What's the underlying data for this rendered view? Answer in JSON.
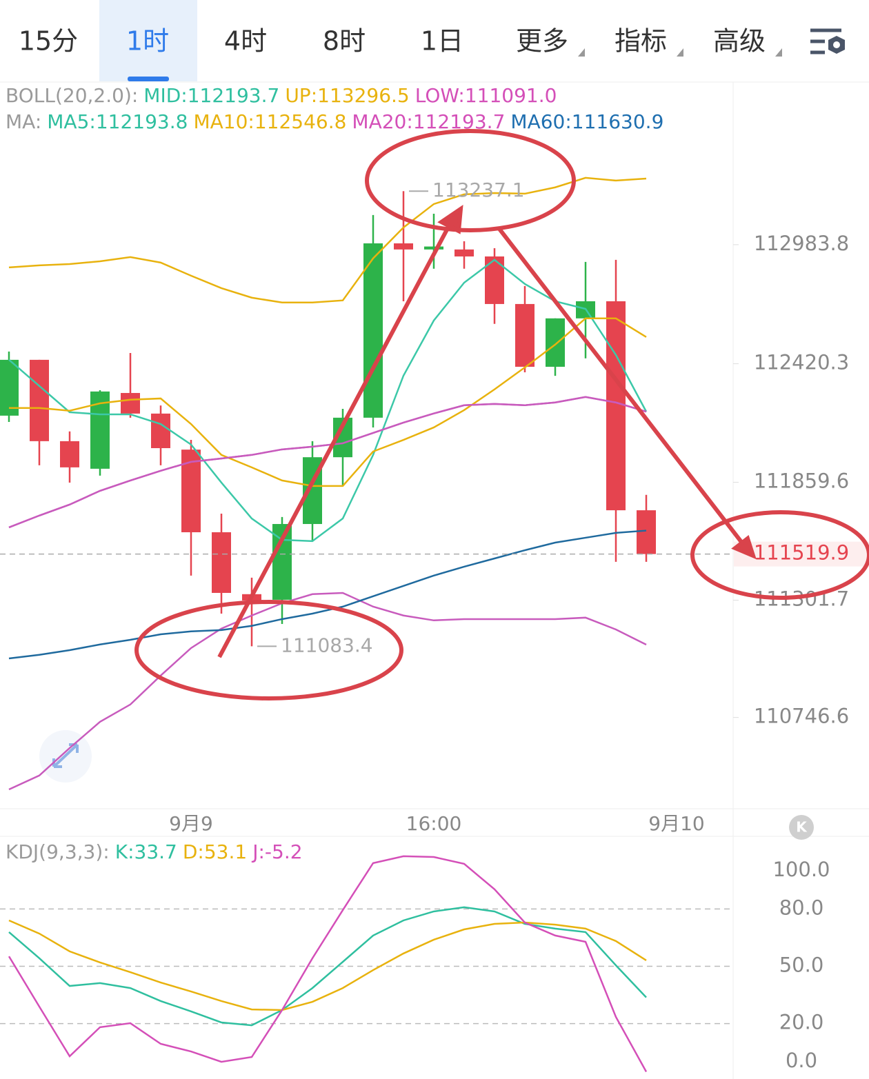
{
  "tabs": {
    "items": [
      "15分",
      "1时",
      "4时",
      "8时",
      "1日",
      "更多",
      "指标",
      "高级"
    ],
    "active": 1
  },
  "chart_data": [
    {
      "type": "candlestick",
      "indicator_title": "BOLL(20,2.0):",
      "ma_title": "MA:",
      "ylim": [
        110318,
        113750
      ],
      "yticks": [
        {
          "value": 112983.8,
          "label": "112983.8"
        },
        {
          "value": 112420.3,
          "label": "112420.3"
        },
        {
          "value": 111859.6,
          "label": "111859.6"
        },
        {
          "value": 111301.7,
          "label": "111301.7"
        },
        {
          "value": 110746.6,
          "label": "110746.6"
        }
      ],
      "xticks": [
        {
          "value": 6,
          "label": "9月9"
        },
        {
          "value": 14,
          "label": "16:00"
        },
        {
          "value": 22,
          "label": "9月10"
        }
      ],
      "up_color": "#2db34a",
      "down_color": "#e5444f",
      "candles": [
        {
          "open": 112174.7,
          "high": 112478,
          "low": 112145,
          "close": 112438.9
        },
        {
          "open": 112438.9,
          "high": 112438.9,
          "low": 111939.8,
          "close": 112054
        },
        {
          "open": 112054,
          "high": 112100,
          "low": 111858,
          "close": 111930
        },
        {
          "open": 111923.5,
          "high": 112295,
          "low": 111891,
          "close": 112289
        },
        {
          "open": 112282,
          "high": 112471,
          "low": 112165,
          "close": 112184.5
        },
        {
          "open": 112184.5,
          "high": 112223,
          "low": 111940,
          "close": 112021
        },
        {
          "open": 112014,
          "high": 112060,
          "low": 111418,
          "close": 111623
        },
        {
          "open": 111623,
          "high": 111711,
          "low": 111238,
          "close": 111336
        },
        {
          "open": 111330,
          "high": 111408,
          "low": 111083.4,
          "close": 111300
        },
        {
          "open": 111303.6,
          "high": 111695,
          "low": 111189,
          "close": 111662
        },
        {
          "open": 111662,
          "high": 112054,
          "low": 111581,
          "close": 111978
        },
        {
          "open": 111978,
          "high": 112207,
          "low": 111842,
          "close": 112165
        },
        {
          "open": 112165,
          "high": 113124,
          "low": 112119,
          "close": 112990
        },
        {
          "open": 112990,
          "high": 113237.1,
          "low": 112716,
          "close": 112961
        },
        {
          "open": 112961,
          "high": 113130,
          "low": 112870,
          "close": 112975
        },
        {
          "open": 112961,
          "high": 113000,
          "low": 112870,
          "close": 112928
        },
        {
          "open": 112928,
          "high": 112967,
          "low": 112609,
          "close": 112703
        },
        {
          "open": 112703,
          "high": 112788,
          "low": 112380,
          "close": 112406
        },
        {
          "open": 112406,
          "high": 112635,
          "low": 112363,
          "close": 112635
        },
        {
          "open": 112635,
          "high": 112902,
          "low": 112446,
          "close": 112716
        },
        {
          "open": 112716,
          "high": 112912,
          "low": 111483,
          "close": 111727
        },
        {
          "open": 111727,
          "high": 111800,
          "low": 111483,
          "close": 111519.9
        }
      ],
      "series": [
        {
          "label": "MID:112193.7",
          "group": "boll",
          "color": "#2fbf9f",
          "line": "#c85bbd",
          "values": [
            111646,
            111702,
            111754,
            111819,
            111868,
            111914,
            111956,
            111972,
            111989,
            112015,
            112028,
            112044,
            112093,
            112142,
            112185,
            112224,
            112230,
            112224,
            112237,
            112263,
            112237,
            112193.7
          ]
        },
        {
          "label": "UP:113296.5",
          "group": "boll",
          "color": "#e8b20e",
          "line": "#e8b20e",
          "values": [
            112876,
            112886,
            112892,
            112905,
            112925,
            112899,
            112837,
            112778,
            112733,
            112710,
            112710,
            112720,
            112919,
            113065,
            113176,
            113222,
            113228,
            113225,
            113255,
            113300,
            113287,
            113296.5
          ]
        },
        {
          "label": "LOW:111091.0",
          "group": "boll",
          "color": "#d44fb8",
          "line": "#c85bbd",
          "values": [
            110406,
            110472,
            110602,
            110726,
            110808,
            110945,
            111075,
            111167,
            111229,
            111287,
            111330,
            111336,
            111271,
            111229,
            111206,
            111212,
            111212,
            111212,
            111212,
            111219,
            111163,
            111091
          ]
        },
        {
          "label": "MA5:112193.8",
          "group": "ma",
          "color": "#2fbf9f",
          "line": "#3cc8a8",
          "values": [
            112439,
            112315,
            112191,
            112181,
            112181,
            112135,
            112038,
            111858,
            111688,
            111587,
            111581,
            111688,
            111989,
            112364,
            112625,
            112804,
            112912,
            112798,
            112716,
            112680,
            112462,
            112193.8
          ]
        },
        {
          "label": "MA10:112546.8",
          "group": "ma",
          "color": "#e8b20e",
          "line": "#e8b20e",
          "values": [
            112211,
            112211,
            112198,
            112233,
            112250,
            112256,
            112135,
            111989,
            111930,
            111868,
            111842,
            111842,
            112005,
            112060,
            112119,
            112201,
            112299,
            112403,
            112511,
            112635,
            112635,
            112546.8
          ]
        },
        {
          "label": "MA20:112193.7",
          "group": "ma",
          "color": "#d44fb8",
          "line": "#c85bbd",
          "values": [
            111646,
            111702,
            111754,
            111819,
            111868,
            111914,
            111956,
            111972,
            111989,
            112015,
            112028,
            112044,
            112093,
            112142,
            112185,
            112224,
            112230,
            112224,
            112237,
            112263,
            112237,
            112193.7
          ]
        },
        {
          "label": "MA60:111630.9",
          "group": "ma",
          "color": "#1f6fb0",
          "line": "#1f6a9e",
          "values": [
            111026,
            111043,
            111065,
            111092,
            111114,
            111140,
            111154,
            111160,
            111180,
            111212,
            111238,
            111271,
            111320,
            111369,
            111418,
            111460,
            111499,
            111538,
            111574,
            111597,
            111620,
            111630.9
          ]
        }
      ]
    },
    {
      "type": "line",
      "title": "KDJ(9,3,3):",
      "ylim": [
        -7.2,
        117.3
      ],
      "yticks": [
        {
          "value": 100,
          "label": "100.0"
        },
        {
          "value": 80,
          "label": "80.0"
        },
        {
          "value": 50,
          "label": "50.0"
        },
        {
          "value": 20,
          "label": "20.0"
        },
        {
          "value": 0,
          "label": "0.0"
        }
      ],
      "series": [
        {
          "label": "K:33.7",
          "color": "#2fbf9f",
          "values": [
            67.9,
            54.2,
            39.7,
            41.2,
            38.6,
            31.8,
            26.4,
            20.6,
            19.1,
            27.1,
            38.6,
            52.3,
            66.1,
            74.0,
            78.7,
            80.9,
            78.7,
            72.2,
            69.7,
            67.9,
            50.5,
            33.7
          ]
        },
        {
          "label": "D:53.1",
          "color": "#e8b20e",
          "values": [
            74.0,
            67.1,
            57.8,
            52.0,
            46.9,
            41.5,
            36.8,
            31.8,
            27.4,
            27.1,
            31.4,
            38.6,
            48.0,
            56.7,
            63.9,
            69.3,
            72.2,
            72.9,
            71.8,
            69.7,
            63.2,
            53.1
          ]
        },
        {
          "label": "J:-5.2",
          "color": "#d44fb8",
          "values": [
            55.2,
            28.9,
            2.9,
            18.1,
            20.2,
            9.4,
            5.4,
            0,
            2.5,
            27.1,
            54.2,
            79.4,
            104.0,
            107.6,
            107.2,
            103.6,
            90.3,
            72.9,
            66.1,
            62.8,
            23.5,
            -5.2
          ]
        }
      ]
    }
  ]
}
